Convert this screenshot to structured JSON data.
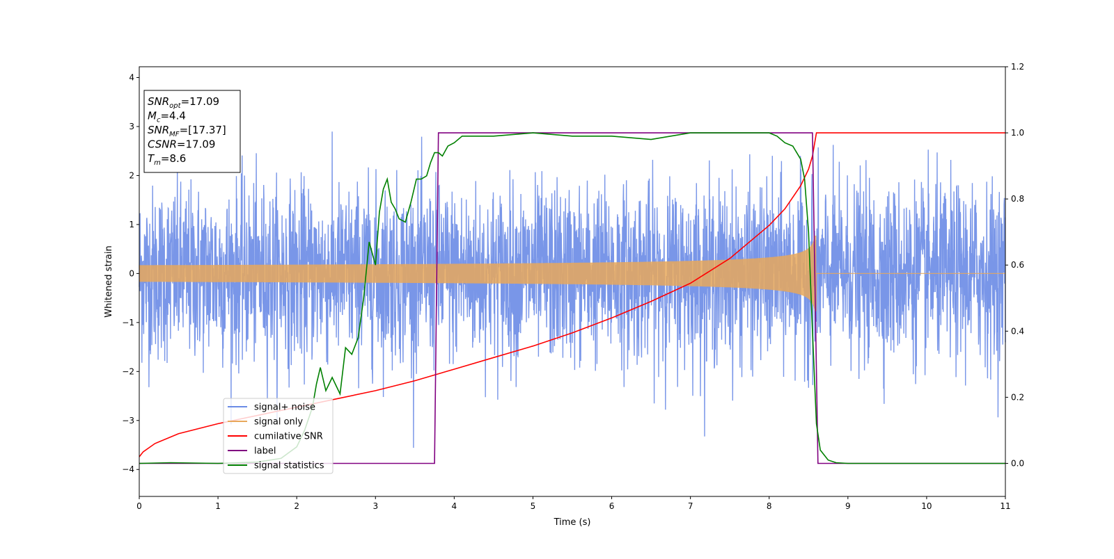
{
  "chart_data": {
    "type": "line",
    "xlabel": "Time (s)",
    "ylabel": "Whitened strain",
    "xlim": [
      0,
      11
    ],
    "ylim": [
      -4.55,
      4.22
    ],
    "y2lim": [
      -0.1,
      1.2
    ],
    "xticks": [
      0,
      1,
      2,
      3,
      4,
      5,
      6,
      7,
      8,
      9,
      10,
      11
    ],
    "yticks": [
      -4,
      -3,
      -2,
      -1,
      0,
      1,
      2,
      3,
      4
    ],
    "y2ticks": [
      "0.0",
      "0.2",
      "0.4",
      "0.6",
      "0.8",
      "1.0",
      "1.2"
    ],
    "grid": false,
    "legend_position": "lower-left",
    "annotation": {
      "lines": [
        {
          "base": "SNR",
          "sub": "opt",
          "value": "=17.09"
        },
        {
          "base": "M",
          "sub": "c",
          "value": "=4.4"
        },
        {
          "base": "SNR",
          "sub": "MF",
          "value": "=[17.37]"
        },
        {
          "base": "CSNR",
          "sub": "",
          "value": "=17.09"
        },
        {
          "base": "T",
          "sub": "m",
          "value": "=8.6"
        }
      ]
    },
    "series": [
      {
        "name": "signal+ noise",
        "color": "#6a8be6",
        "axis": "left",
        "kind": "noise",
        "range": [
          -4.17,
          3.84
        ],
        "typical_amplitude": 2.3
      },
      {
        "name": "signal only",
        "color": "#e8a85c",
        "axis": "left",
        "kind": "chirp",
        "merger_time": 8.6,
        "amplitude_start": 0.1,
        "amplitude_at_8": 0.33,
        "amplitude_peak": 0.9
      },
      {
        "name": "cumilative SNR",
        "color": "#ff0000",
        "axis": "right",
        "x": [
          0,
          0.05,
          0.2,
          0.5,
          1,
          1.5,
          2,
          2.5,
          3,
          3.5,
          4,
          4.5,
          5,
          5.5,
          6,
          6.5,
          7,
          7.5,
          8,
          8.2,
          8.4,
          8.5,
          8.55,
          8.6,
          11
        ],
        "y": [
          0.02,
          0.035,
          0.06,
          0.09,
          0.12,
          0.145,
          0.17,
          0.195,
          0.22,
          0.25,
          0.285,
          0.32,
          0.355,
          0.395,
          0.44,
          0.49,
          0.545,
          0.62,
          0.72,
          0.77,
          0.84,
          0.89,
          0.93,
          1.0,
          1.0
        ]
      },
      {
        "name": "label",
        "color": "#800080",
        "axis": "right",
        "x": [
          0,
          3.75,
          3.8,
          8.55,
          8.62,
          11
        ],
        "y": [
          0,
          0,
          1,
          1,
          0,
          0
        ]
      },
      {
        "name": "signal statistics",
        "color": "#008000",
        "axis": "right",
        "x": [
          0,
          0.4,
          1.0,
          1.5,
          1.8,
          2.0,
          2.1,
          2.2,
          2.25,
          2.3,
          2.37,
          2.45,
          2.55,
          2.62,
          2.7,
          2.78,
          2.85,
          2.92,
          3.0,
          3.05,
          3.1,
          3.15,
          3.2,
          3.25,
          3.3,
          3.38,
          3.45,
          3.52,
          3.58,
          3.65,
          3.7,
          3.75,
          3.8,
          3.85,
          3.92,
          4.0,
          4.1,
          4.2,
          4.3,
          4.5,
          5.0,
          5.5,
          6.0,
          6.5,
          7.0,
          7.5,
          8.0,
          8.1,
          8.2,
          8.3,
          8.4,
          8.45,
          8.5,
          8.55,
          8.6,
          8.65,
          8.75,
          8.85,
          9,
          11
        ],
        "y": [
          0,
          0.002,
          0,
          0.004,
          0.015,
          0.05,
          0.1,
          0.17,
          0.24,
          0.29,
          0.22,
          0.26,
          0.21,
          0.35,
          0.33,
          0.38,
          0.5,
          0.67,
          0.6,
          0.76,
          0.83,
          0.86,
          0.79,
          0.77,
          0.74,
          0.73,
          0.79,
          0.86,
          0.86,
          0.87,
          0.91,
          0.94,
          0.94,
          0.93,
          0.96,
          0.97,
          0.99,
          0.99,
          0.99,
          0.99,
          1.0,
          0.99,
          0.99,
          0.98,
          1.0,
          1.0,
          1.0,
          0.99,
          0.97,
          0.96,
          0.92,
          0.86,
          0.7,
          0.4,
          0.12,
          0.04,
          0.01,
          0.002,
          0,
          0
        ]
      }
    ]
  }
}
